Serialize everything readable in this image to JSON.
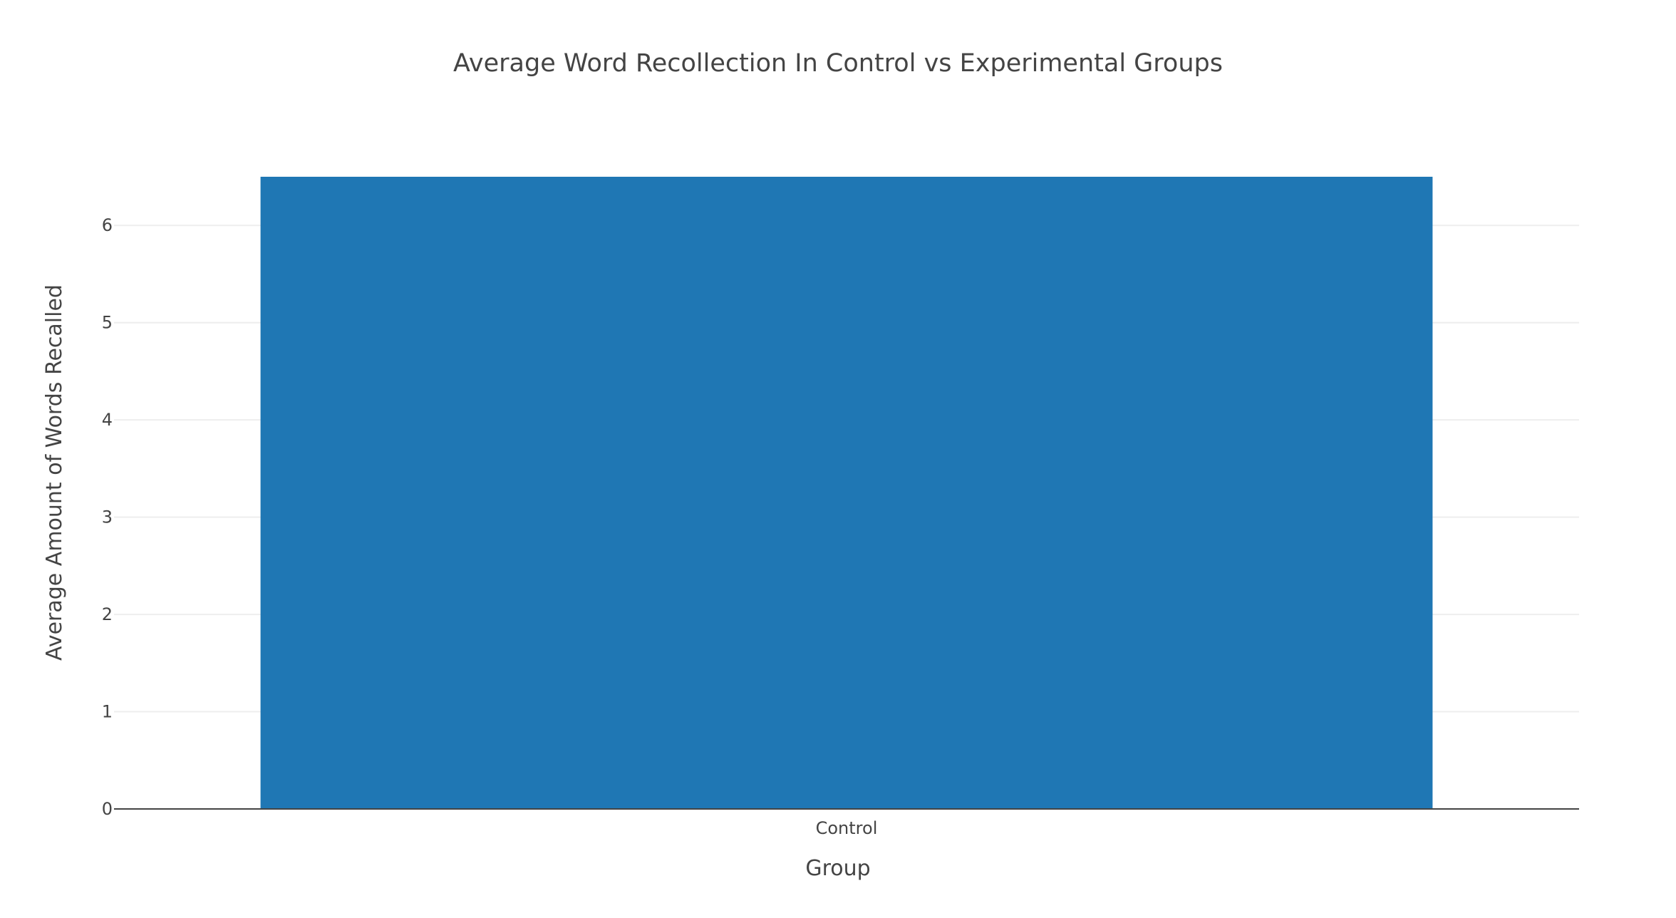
{
  "chart_data": {
    "type": "bar",
    "title": "Average Word Recollection In Control vs Experimental Groups",
    "xlabel": "Group",
    "ylabel": "Average Amount of Words Recalled",
    "categories": [
      "Control"
    ],
    "values": [
      6.5
    ],
    "ylim": [
      0,
      6.5
    ],
    "yticks": [
      0,
      1,
      2,
      3,
      4,
      5,
      6
    ],
    "grid": true,
    "bar_color": "#1f77b4",
    "grid_color": "#eeeeee",
    "text_color": "#444444"
  }
}
